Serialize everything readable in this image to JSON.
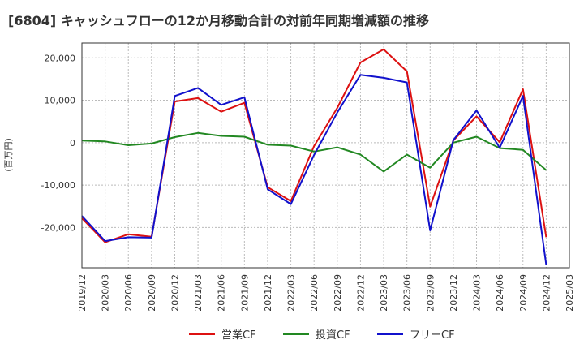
{
  "chart_data": {
    "type": "line",
    "title": "[6804]  キャッシュフローの12か月移動合計の対前年同期増減額の推移",
    "xlabel": "",
    "ylabel": "(百万円)",
    "x": [
      "2019/12",
      "2020/03",
      "2020/06",
      "2020/09",
      "2020/12",
      "2021/03",
      "2021/06",
      "2021/09",
      "2021/12",
      "2022/03",
      "2022/06",
      "2022/09",
      "2022/12",
      "2023/03",
      "2023/06",
      "2023/09",
      "2023/12",
      "2024/03",
      "2024/06",
      "2024/09",
      "2024/12"
    ],
    "x_ticks": [
      "2019/12",
      "2020/03",
      "2020/06",
      "2020/09",
      "2020/12",
      "2021/03",
      "2021/06",
      "2021/09",
      "2021/12",
      "2022/03",
      "2022/06",
      "2022/09",
      "2022/12",
      "2023/03",
      "2023/06",
      "2023/09",
      "2023/12",
      "2024/03",
      "2024/06",
      "2024/09",
      "2024/12",
      "2025/03"
    ],
    "y_ticks": [
      20000,
      10000,
      0,
      -10000,
      -20000
    ],
    "y_tick_labels": [
      "20,000",
      "10,000",
      "0",
      "-10,000",
      "-20,000"
    ],
    "ylim": [
      -29500,
      23500
    ],
    "grid": true,
    "legend_position": "bottom",
    "series": [
      {
        "name": "営業CF",
        "color": "#dd1111",
        "values": [
          -17800,
          -23500,
          -21600,
          -22200,
          9700,
          10500,
          7300,
          9400,
          -10500,
          -13800,
          -800,
          8200,
          18900,
          22000,
          16800,
          -15100,
          500,
          6200,
          100,
          12600,
          -22300
        ]
      },
      {
        "name": "投資CF",
        "color": "#228822",
        "values": [
          500,
          300,
          -600,
          -200,
          1300,
          2300,
          1600,
          1400,
          -500,
          -700,
          -2100,
          -1100,
          -2800,
          -6800,
          -2800,
          -5900,
          0,
          1400,
          -1300,
          -1700,
          -6500
        ]
      },
      {
        "name": "フリーCF",
        "color": "#1111cc",
        "values": [
          -17300,
          -23200,
          -22300,
          -22400,
          11000,
          12900,
          8900,
          10700,
          -11000,
          -14500,
          -2900,
          7100,
          16000,
          15300,
          14200,
          -20700,
          600,
          7600,
          -1200,
          11000,
          -28800
        ]
      }
    ]
  }
}
